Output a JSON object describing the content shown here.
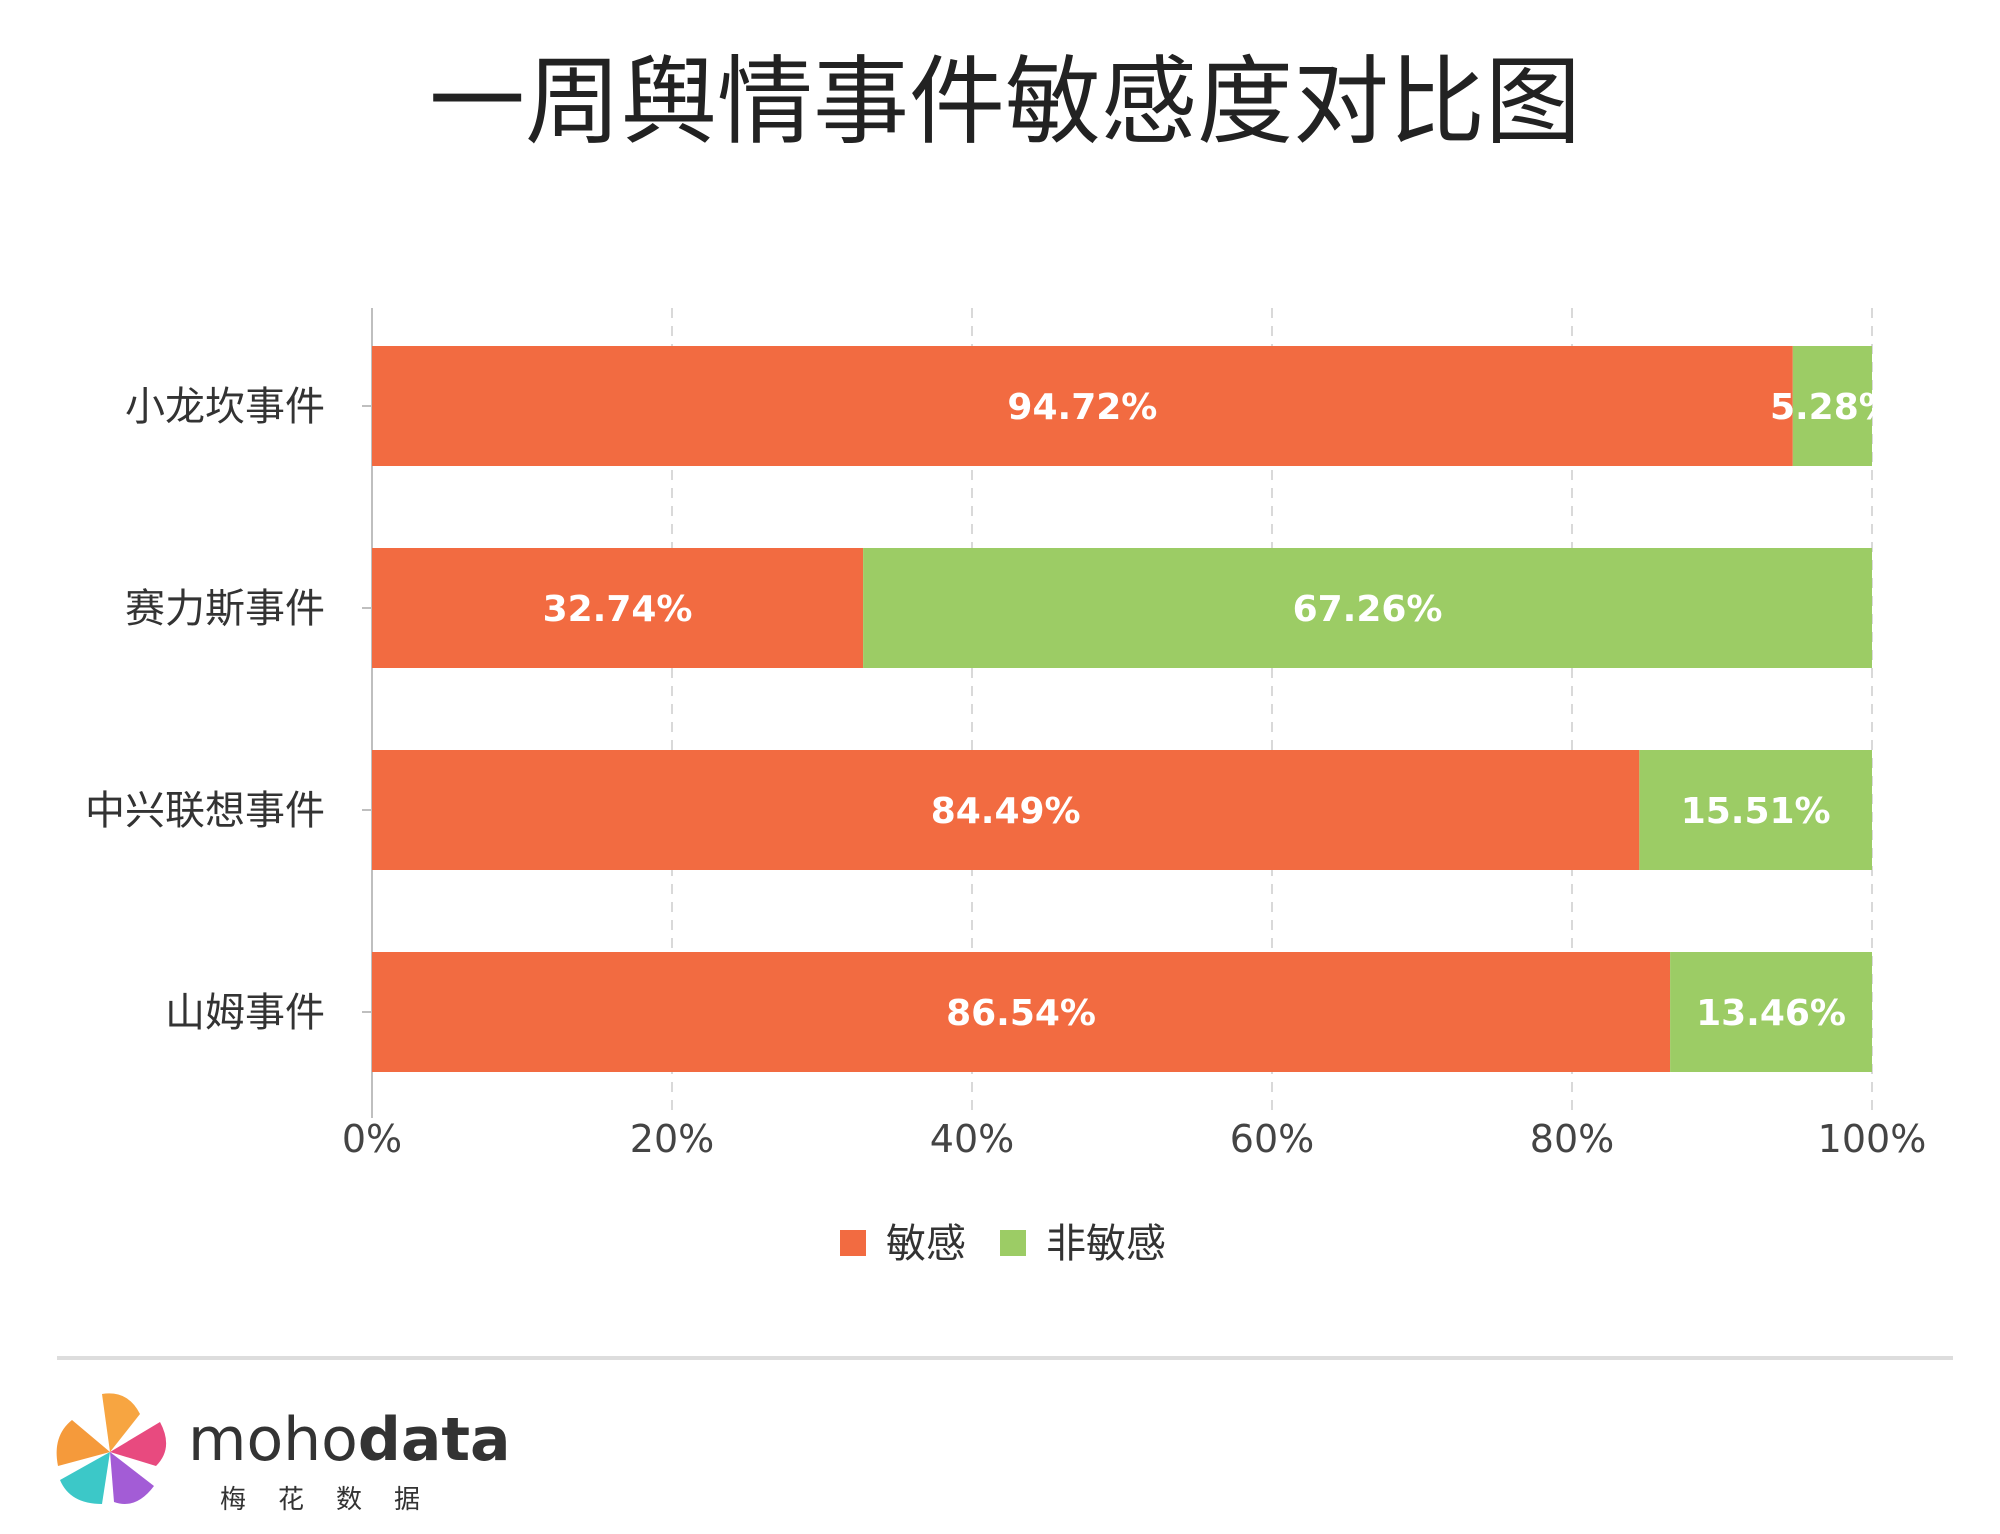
{
  "colors": {
    "sensitive": "#f26b41",
    "non_sensitive": "#9ccc65"
  },
  "chart_data": {
    "type": "bar",
    "orientation": "horizontal",
    "stacked": true,
    "title": "一周舆情事件敏感度对比图",
    "categories": [
      "小龙坎事件",
      "赛力斯事件",
      "中兴联想事件",
      "山姆事件"
    ],
    "series": [
      {
        "name": "敏感",
        "values": [
          94.72,
          32.74,
          84.49,
          86.54
        ],
        "labels": [
          "94.72%",
          "32.74%",
          "84.49%",
          "86.54%"
        ]
      },
      {
        "name": "非敏感",
        "values": [
          5.28,
          67.26,
          15.51,
          13.46
        ],
        "labels": [
          "5.28%",
          "67.26%",
          "15.51%",
          "13.46%"
        ]
      }
    ],
    "xlim": [
      0,
      100
    ],
    "x_ticks": [
      "0%",
      "20%",
      "40%",
      "60%",
      "80%",
      "100%"
    ],
    "grid": true,
    "legend_position": "bottom"
  },
  "brand": {
    "name_light": "moho",
    "name_bold": "data",
    "subtitle": "梅花数据"
  }
}
